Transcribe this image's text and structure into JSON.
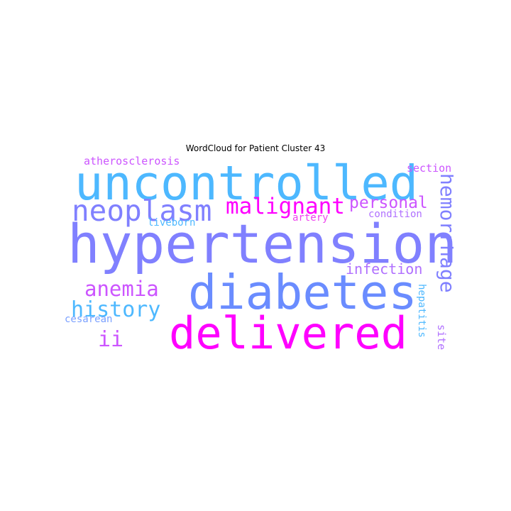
{
  "title": "WordCloud for Patient Cluster 43",
  "colors": {
    "sky": "#4db8ff",
    "periwinkle": "#8080ff",
    "blue_violet": "#6a8cff",
    "magenta": "#ff00ff",
    "orchid": "#cc55ff",
    "lavender": "#b070ff",
    "pink": "#ee44ee",
    "light_blue": "#7aa0ff"
  },
  "words": {
    "uncontrolled": "uncontrolled",
    "hypertension": "hypertension",
    "diabetes": "diabetes",
    "delivered": "delivered",
    "neoplasm": "neoplasm",
    "malignant": "malignant",
    "personal": "personal",
    "hemorrhage": "hemorrhage",
    "anemia": "anemia",
    "history": "history",
    "infection": "infection",
    "ii": "ii",
    "atherosclerosis": "atherosclerosis",
    "section": "section",
    "condition": "condition",
    "artery": "artery",
    "liveborn": "liveborn",
    "cesarean": "cesarean",
    "hepatitis": "hepatitis",
    "site": "site"
  }
}
